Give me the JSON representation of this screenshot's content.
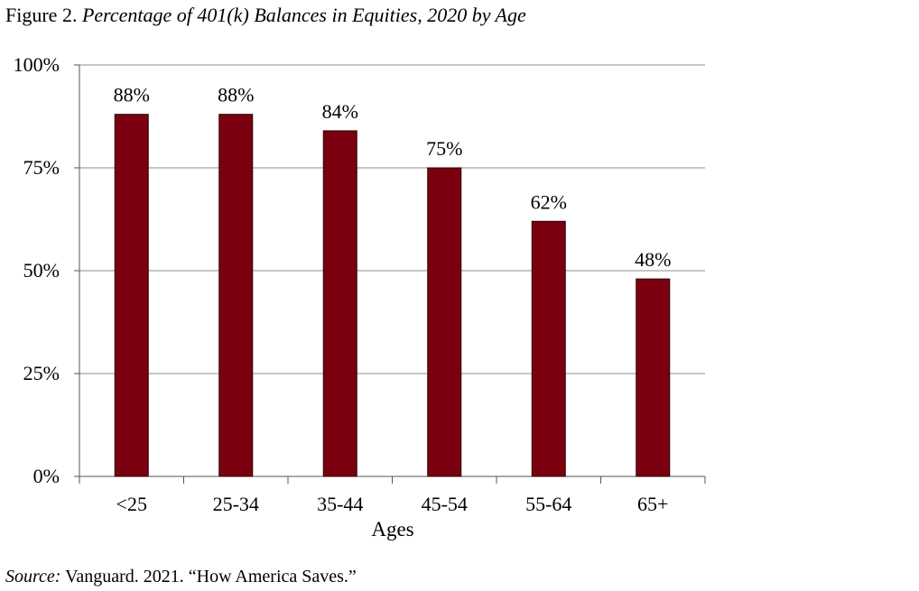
{
  "figure": {
    "label": "Figure 2.",
    "title": "Percentage of 401(k) Balances in Equities, 2020 by Age"
  },
  "source": {
    "label": "Source:",
    "text": "Vanguard. 2021. “How America Saves.”"
  },
  "chart_data": {
    "type": "bar",
    "title": "Percentage of 401(k) Balances in Equities, 2020 by Age",
    "xlabel": "Ages",
    "ylabel": "",
    "categories": [
      "<25",
      "25-34",
      "35-44",
      "45-54",
      "55-64",
      "65+"
    ],
    "values": [
      88,
      88,
      84,
      75,
      62,
      48
    ],
    "data_labels": [
      "88%",
      "88%",
      "84%",
      "75%",
      "62%",
      "48%"
    ],
    "ylim": [
      0,
      100
    ],
    "yticks": [
      0,
      25,
      50,
      75,
      100
    ],
    "ytick_labels": [
      "0%",
      "25%",
      "50%",
      "75%",
      "100%"
    ],
    "grid": true,
    "legend": "none",
    "colors": {
      "bar": "#7a0010",
      "bar_edge": "#2a0005",
      "grid": "#8c8c8c"
    }
  }
}
